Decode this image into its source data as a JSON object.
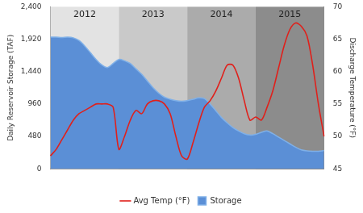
{
  "chart_data": {
    "type": "line",
    "categories": [
      null,
      null,
      null,
      null,
      null,
      null,
      null,
      null,
      null,
      null,
      null,
      null,
      null,
      null,
      null,
      null,
      null,
      null,
      null,
      null,
      null,
      null,
      null,
      null,
      null,
      null,
      null,
      null,
      null,
      null,
      null,
      null,
      null,
      null,
      null,
      null,
      null,
      null,
      null,
      null,
      null,
      null,
      null,
      null,
      null,
      null,
      null,
      null,
      null
    ],
    "series": [
      {
        "name": "Storage",
        "type": "area",
        "color": "#5b8fd6",
        "axis": "y",
        "values": [
          1950,
          1950,
          1945,
          1950,
          1940,
          1900,
          1820,
          1720,
          1620,
          1540,
          1500,
          1560,
          1620,
          1600,
          1560,
          1480,
          1400,
          1300,
          1200,
          1120,
          1060,
          1030,
          1010,
          1000,
          1010,
          1030,
          1050,
          1040,
          960,
          860,
          760,
          680,
          610,
          560,
          520,
          500,
          510,
          540,
          560,
          520,
          470,
          420,
          370,
          320,
          280,
          265,
          260,
          260,
          270
        ]
      },
      {
        "name": "Avg Temp (°F)",
        "type": "line",
        "color": "#e0201b",
        "axis": "y2",
        "values": [
          47,
          48,
          49.5,
          51,
          52.5,
          53.5,
          54,
          54.5,
          55,
          55,
          55,
          54.5,
          48,
          50,
          52.5,
          54,
          53.5,
          55,
          55.5,
          55.5,
          55,
          53.5,
          50,
          47,
          46.5,
          49,
          52,
          54.5,
          55.5,
          57,
          59,
          61,
          61,
          59,
          55.5,
          52.5,
          53,
          52.5,
          54.5,
          57,
          60.5,
          64,
          66.5,
          67.5,
          67,
          65.5,
          61,
          55,
          50
        ]
      }
    ],
    "y_label": "Daily Reservoir Storage (TAF)",
    "y2_label": "Discharge Temperature (°F)",
    "ylim": [
      0,
      2400
    ],
    "yticks": [
      0,
      480,
      960,
      1440,
      1920,
      2400
    ],
    "y2lim": [
      45,
      70
    ],
    "y2ticks": [
      45,
      50,
      55,
      60,
      65,
      70
    ],
    "annotations": [
      {
        "text": "2012",
        "start": 0,
        "end": 12
      },
      {
        "text": "2013",
        "start": 12,
        "end": 24
      },
      {
        "text": "2014",
        "start": 24,
        "end": 36
      },
      {
        "text": "2015",
        "start": 36,
        "end": 48
      }
    ],
    "grid": false,
    "legend": "bottom"
  }
}
